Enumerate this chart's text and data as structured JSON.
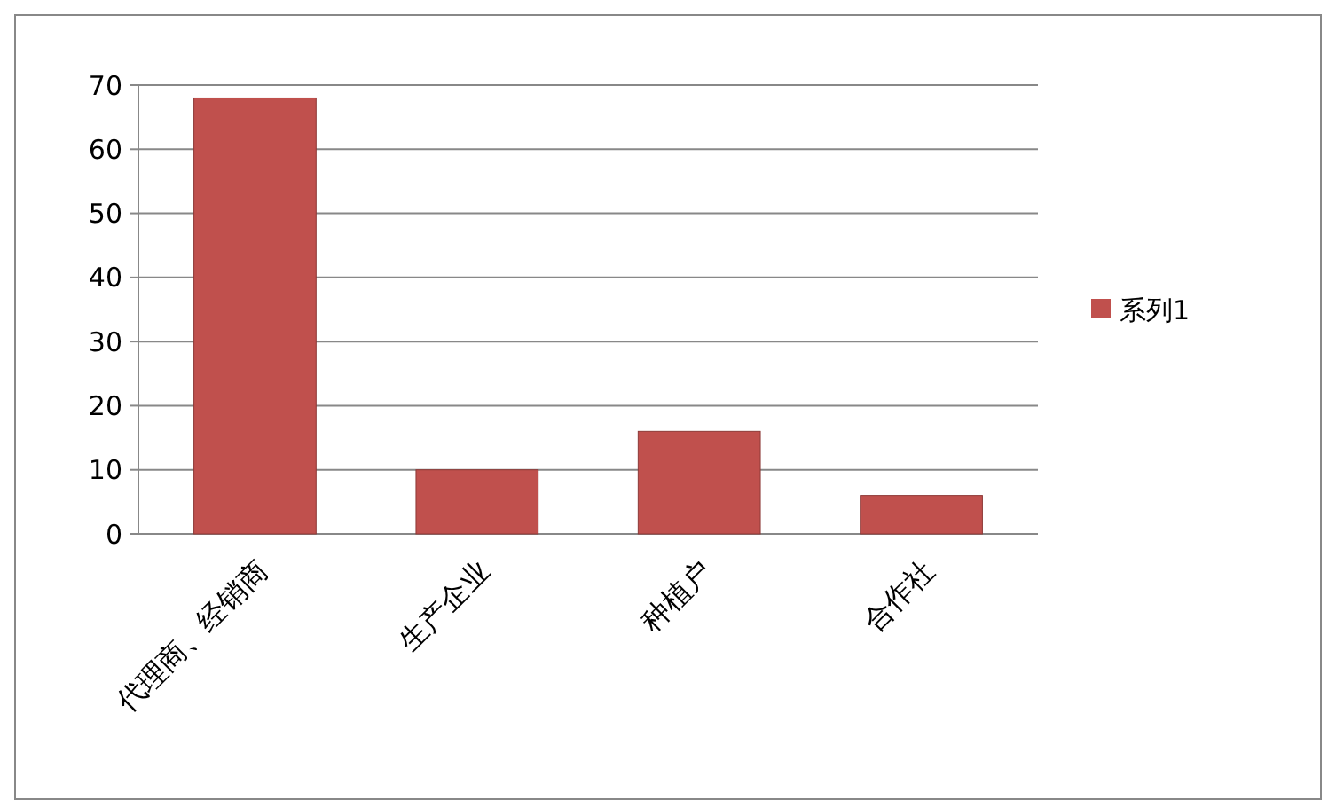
{
  "chart_data": {
    "type": "bar",
    "categories": [
      "代理商、经销商",
      "生产企业",
      "种植户",
      "合作社"
    ],
    "series": [
      {
        "name": "系列1",
        "color": "#c0504d",
        "values": [
          68,
          10,
          16,
          6
        ]
      }
    ],
    "ylim": [
      0,
      70
    ],
    "yticks": [
      0,
      10,
      20,
      30,
      40,
      50,
      60,
      70
    ],
    "grid": "y",
    "legend": "right"
  }
}
